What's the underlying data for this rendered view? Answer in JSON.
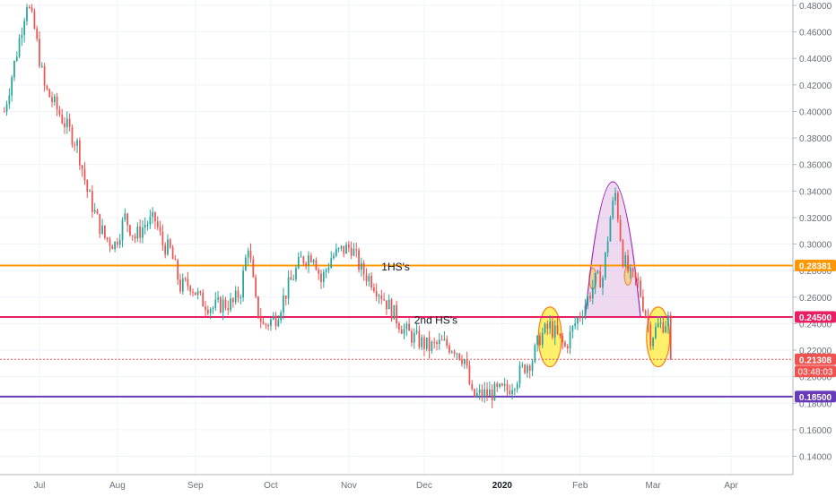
{
  "chart_data": {
    "type": "candlestick",
    "title": "",
    "xlabel": "",
    "ylabel": "",
    "ylim": [
      0.12,
      0.49
    ],
    "y_ticks": [
      "0.14000",
      "0.16000",
      "0.18000",
      "0.20000",
      "0.22000",
      "0.24000",
      "0.26000",
      "0.28000",
      "0.30000",
      "0.32000",
      "0.34000",
      "0.36000",
      "0.38000",
      "0.40000",
      "0.42000",
      "0.44000",
      "0.46000",
      "0.48000"
    ],
    "x_labels": [
      "Jul",
      "Aug",
      "Sep",
      "Oct",
      "Nov",
      "Dec",
      "2020",
      "Feb",
      "Mar",
      "Apr"
    ],
    "grid": true,
    "price_path": [
      [
        "2019-06-17",
        0.4
      ],
      [
        "2019-06-22",
        0.445
      ],
      [
        "2019-06-26",
        0.483
      ],
      [
        "2019-06-29",
        0.462
      ],
      [
        "2019-07-03",
        0.418
      ],
      [
        "2019-07-07",
        0.405
      ],
      [
        "2019-07-12",
        0.388
      ],
      [
        "2019-07-16",
        0.375
      ],
      [
        "2019-07-20",
        0.34
      ],
      [
        "2019-07-24",
        0.318
      ],
      [
        "2019-07-27",
        0.305
      ],
      [
        "2019-07-31",
        0.3
      ],
      [
        "2019-08-04",
        0.32
      ],
      [
        "2019-08-08",
        0.305
      ],
      [
        "2019-08-12",
        0.315
      ],
      [
        "2019-08-16",
        0.318
      ],
      [
        "2019-08-19",
        0.3
      ],
      [
        "2019-08-22",
        0.295
      ],
      [
        "2019-08-26",
        0.268
      ],
      [
        "2019-08-30",
        0.27
      ],
      [
        "2019-09-03",
        0.258
      ],
      [
        "2019-09-08",
        0.252
      ],
      [
        "2019-09-12",
        0.255
      ],
      [
        "2019-09-16",
        0.255
      ],
      [
        "2019-09-19",
        0.265
      ],
      [
        "2019-09-22",
        0.3
      ],
      [
        "2019-09-25",
        0.255
      ],
      [
        "2019-09-28",
        0.238
      ],
      [
        "2019-10-03",
        0.245
      ],
      [
        "2019-10-08",
        0.268
      ],
      [
        "2019-10-13",
        0.288
      ],
      [
        "2019-10-18",
        0.293
      ],
      [
        "2019-10-21",
        0.272
      ],
      [
        "2019-10-25",
        0.29
      ],
      [
        "2019-10-29",
        0.295
      ],
      [
        "2019-11-02",
        0.298
      ],
      [
        "2019-11-06",
        0.28
      ],
      [
        "2019-11-10",
        0.273
      ],
      [
        "2019-11-14",
        0.262
      ],
      [
        "2019-11-18",
        0.25
      ],
      [
        "2019-11-23",
        0.235
      ],
      [
        "2019-11-28",
        0.228
      ],
      [
        "2019-12-03",
        0.222
      ],
      [
        "2019-12-08",
        0.225
      ],
      [
        "2019-12-13",
        0.222
      ],
      [
        "2019-12-17",
        0.213
      ],
      [
        "2019-12-20",
        0.185
      ],
      [
        "2019-12-25",
        0.187
      ],
      [
        "2019-12-29",
        0.188
      ],
      [
        "2020-01-03",
        0.19
      ],
      [
        "2020-01-07",
        0.2
      ],
      [
        "2020-01-10",
        0.208
      ],
      [
        "2020-01-13",
        0.213
      ],
      [
        "2020-01-16",
        0.23
      ],
      [
        "2020-01-20",
        0.238
      ],
      [
        "2020-01-23",
        0.23
      ],
      [
        "2020-01-26",
        0.222
      ],
      [
        "2020-01-30",
        0.24
      ],
      [
        "2020-02-03",
        0.255
      ],
      [
        "2020-02-07",
        0.272
      ],
      [
        "2020-02-10",
        0.275
      ],
      [
        "2020-02-13",
        0.32
      ],
      [
        "2020-02-15",
        0.338
      ],
      [
        "2020-02-18",
        0.29
      ],
      [
        "2020-02-21",
        0.275
      ],
      [
        "2020-02-24",
        0.27
      ],
      [
        "2020-02-27",
        0.248
      ],
      [
        "2020-02-29",
        0.23
      ],
      [
        "2020-03-03",
        0.238
      ],
      [
        "2020-03-05",
        0.24
      ],
      [
        "2020-03-07",
        0.243
      ],
      [
        "2020-03-08",
        0.213
      ]
    ],
    "horizontal_lines": [
      {
        "value": 0.28381,
        "label": "0.28381",
        "color": "#ff9800"
      },
      {
        "value": 0.245,
        "label": "0.24500",
        "color": "#e91e63"
      },
      {
        "value": 0.185,
        "label": "0.18500",
        "color": "#673ab7"
      }
    ],
    "last_price": {
      "value": 0.21308,
      "label": "0.21308",
      "countdown": "03:48:03",
      "color": "#ef5350"
    },
    "annotations": [
      {
        "text": "1HS's",
        "x": "2019-11-14",
        "y": 0.28
      },
      {
        "text": "2nd HS's",
        "x": "2019-11-27",
        "y": 0.24
      }
    ],
    "shapes": [
      {
        "type": "ellipse",
        "color": "yellow",
        "center": [
          "2020-01-20",
          0.23
        ],
        "rx_days": 4.6,
        "ry": 0.0225
      },
      {
        "type": "ellipse",
        "color": "yellow",
        "center": [
          "2020-03-03",
          0.23
        ],
        "rx_days": 4.6,
        "ry": 0.0225
      },
      {
        "type": "ellipse",
        "color": "orange",
        "center": [
          "2020-02-06",
          0.274
        ],
        "rx_days": 1.4,
        "ry": 0.008
      },
      {
        "type": "ellipse",
        "color": "orange",
        "center": [
          "2020-02-20",
          0.276
        ],
        "rx_days": 1.4,
        "ry": 0.007
      },
      {
        "type": "arch",
        "color": "purple",
        "from": [
          "2020-02-03",
          0.245
        ],
        "to": [
          "2020-02-25",
          0.245
        ],
        "peak": 0.347
      }
    ],
    "colors": {
      "up": "#26a69a",
      "down": "#ef5350",
      "grid": "#f0f3fa",
      "axis_text": "#6a6d78"
    }
  }
}
